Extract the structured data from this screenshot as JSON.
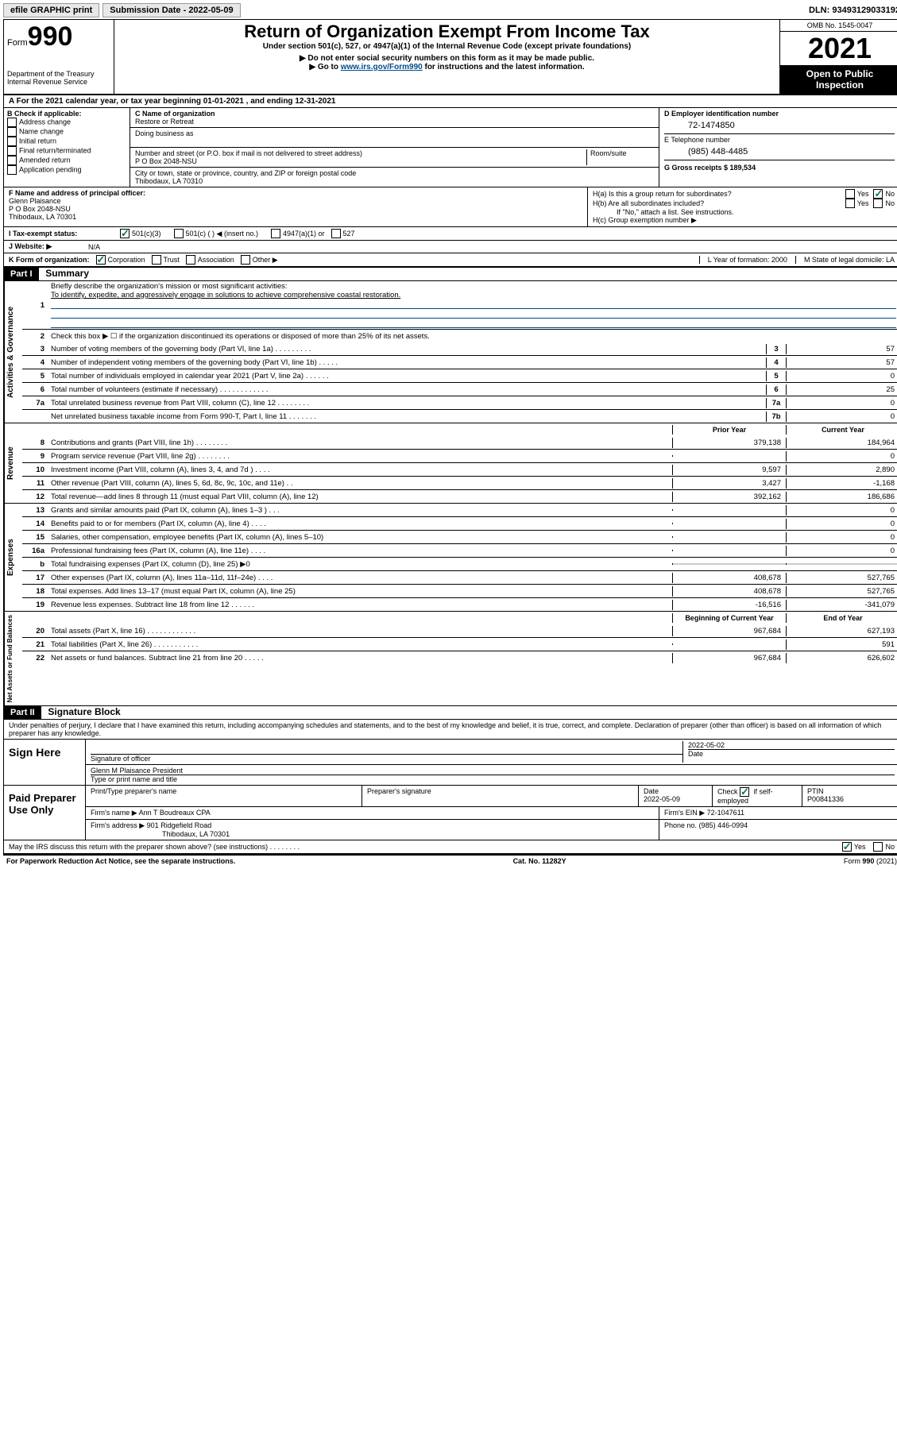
{
  "topbar": {
    "efile": "efile GRAPHIC print",
    "submission_label": "Submission Date - 2022-05-09",
    "dln_label": "DLN: 93493129033192"
  },
  "header": {
    "form_word": "Form",
    "form_num": "990",
    "dept": "Department of the Treasury",
    "irs": "Internal Revenue Service",
    "title": "Return of Organization Exempt From Income Tax",
    "sub1": "Under section 501(c), 527, or 4947(a)(1) of the Internal Revenue Code (except private foundations)",
    "sub2": "▶ Do not enter social security numbers on this form as it may be made public.",
    "sub3_pre": "▶ Go to ",
    "sub3_link": "www.irs.gov/Form990",
    "sub3_post": " for instructions and the latest information.",
    "omb": "OMB No. 1545-0047",
    "year": "2021",
    "otp": "Open to Public Inspection"
  },
  "row_a": "A For the 2021 calendar year, or tax year beginning 01-01-2021    , and ending 12-31-2021",
  "col_b": {
    "title": "B Check if applicable:",
    "items": [
      "Address change",
      "Name change",
      "Initial return",
      "Final return/terminated",
      "Amended return",
      "Application pending"
    ]
  },
  "col_c": {
    "name_lbl": "C Name of organization",
    "name": "Restore or Retreat",
    "dba_lbl": "Doing business as",
    "addr_lbl": "Number and street (or P.O. box if mail is not delivered to street address)",
    "room_lbl": "Room/suite",
    "addr": "P O Box 2048-NSU",
    "city_lbl": "City or town, state or province, country, and ZIP or foreign postal code",
    "city": "Thibodaux, LA   70310"
  },
  "col_de": {
    "d_lbl": "D Employer identification number",
    "d_val": "72-1474850",
    "e_lbl": "E Telephone number",
    "e_val": "(985) 448-4485",
    "g_lbl": "G Gross receipts $ 189,534"
  },
  "col_f": {
    "lbl": "F Name and address of principal officer:",
    "line1": "Glenn Plaisance",
    "line2": "P O Box 2048-NSU",
    "line3": "Thibodaux, LA   70301"
  },
  "col_h": {
    "ha": "H(a)  Is this a group return for subordinates?",
    "hb": "H(b)  Are all subordinates included?",
    "hb_note": "If \"No,\" attach a list. See instructions.",
    "hc": "H(c)  Group exemption number ▶",
    "yes": "Yes",
    "no": "No"
  },
  "row_i": {
    "lbl": "I    Tax-exempt status:",
    "o1": "501(c)(3)",
    "o2": "501(c) (  ) ◀ (insert no.)",
    "o3": "4947(a)(1) or",
    "o4": "527"
  },
  "row_j": {
    "lbl": "J   Website: ▶",
    "val": "N/A"
  },
  "row_k": {
    "lbl": "K Form of organization:",
    "o1": "Corporation",
    "o2": "Trust",
    "o3": "Association",
    "o4": "Other ▶",
    "l": "L Year of formation: 2000",
    "m": "M State of legal domicile: LA"
  },
  "part1": {
    "hdr": "Part I",
    "title": "Summary",
    "line1_lbl": "Briefly describe the organization's mission or most significant activities:",
    "line1_val": "To identify, expedite, and aggressively engage in solutions to achieve comprehensive coastal restoration.",
    "line2": "Check this box ▶ ☐  if the organization discontinued its operations or disposed of more than 25% of its net assets.",
    "gov": [
      {
        "n": "3",
        "t": "Number of voting members of the governing body (Part VI, line 1a)  .    .    .    .    .    .    .    .    .",
        "b": "3",
        "v": "57"
      },
      {
        "n": "4",
        "t": "Number of independent voting members of the governing body (Part VI, line 1b)  .    .    .    .    .",
        "b": "4",
        "v": "57"
      },
      {
        "n": "5",
        "t": "Total number of individuals employed in calendar year 2021 (Part V, line 2a)  .    .    .    .    .    .",
        "b": "5",
        "v": "0"
      },
      {
        "n": "6",
        "t": "Total number of volunteers (estimate if necessary)  .    .    .    .    .    .    .    .    .    .    .    .",
        "b": "6",
        "v": "25"
      },
      {
        "n": "7a",
        "t": "Total unrelated business revenue from Part VIII, column (C), line 12  .    .    .    .    .    .    .    .",
        "b": "7a",
        "v": "0"
      },
      {
        "n": "",
        "t": "Net unrelated business taxable income from Form 990-T, Part I, line 11  .    .    .    .    .    .    .",
        "b": "7b",
        "v": "0"
      }
    ],
    "col_prior": "Prior Year",
    "col_current": "Current Year",
    "rev": [
      {
        "n": "8",
        "t": "Contributions and grants (Part VIII, line 1h)  .    .    .    .    .    .    .    .",
        "p": "379,138",
        "c": "184,964"
      },
      {
        "n": "9",
        "t": "Program service revenue (Part VIII, line 2g)  .    .    .    .    .    .    .    .",
        "p": "",
        "c": "0"
      },
      {
        "n": "10",
        "t": "Investment income (Part VIII, column (A), lines 3, 4, and 7d )  .    .    .    .",
        "p": "9,597",
        "c": "2,890"
      },
      {
        "n": "11",
        "t": "Other revenue (Part VIII, column (A), lines 5, 6d, 8c, 9c, 10c, and 11e)  .    .",
        "p": "3,427",
        "c": "-1,168"
      },
      {
        "n": "12",
        "t": "Total revenue—add lines 8 through 11 (must equal Part VIII, column (A), line 12)",
        "p": "392,162",
        "c": "186,686"
      }
    ],
    "exp": [
      {
        "n": "13",
        "t": "Grants and similar amounts paid (Part IX, column (A), lines 1–3 )  .    .    .",
        "p": "",
        "c": "0"
      },
      {
        "n": "14",
        "t": "Benefits paid to or for members (Part IX, column (A), line 4)  .    .    .    .",
        "p": "",
        "c": "0"
      },
      {
        "n": "15",
        "t": "Salaries, other compensation, employee benefits (Part IX, column (A), lines 5–10)",
        "p": "",
        "c": "0"
      },
      {
        "n": "16a",
        "t": "Professional fundraising fees (Part IX, column (A), line 11e)  .    .    .    .",
        "p": "",
        "c": "0"
      },
      {
        "n": "b",
        "t": "Total fundraising expenses (Part IX, column (D), line 25) ▶0",
        "p": "shade",
        "c": "shade"
      },
      {
        "n": "17",
        "t": "Other expenses (Part IX, column (A), lines 11a–11d, 11f–24e)  .    .    .    .",
        "p": "408,678",
        "c": "527,765"
      },
      {
        "n": "18",
        "t": "Total expenses. Add lines 13–17 (must equal Part IX, column (A), line 25)",
        "p": "408,678",
        "c": "527,765"
      },
      {
        "n": "19",
        "t": "Revenue less expenses. Subtract line 18 from line 12  .    .    .    .    .    .",
        "p": "-16,516",
        "c": "-341,079"
      }
    ],
    "col_begin": "Beginning of Current Year",
    "col_end": "End of Year",
    "net": [
      {
        "n": "20",
        "t": "Total assets (Part X, line 16)  .    .    .    .    .    .    .    .    .    .    .    .",
        "p": "967,684",
        "c": "627,193"
      },
      {
        "n": "21",
        "t": "Total liabilities (Part X, line 26)  .    .    .    .    .    .    .    .    .    .    .",
        "p": "",
        "c": "591"
      },
      {
        "n": "22",
        "t": "Net assets or fund balances. Subtract line 21 from line 20  .    .    .    .    .",
        "p": "967,684",
        "c": "626,602"
      }
    ]
  },
  "side": {
    "gov": "Activities & Governance",
    "rev": "Revenue",
    "exp": "Expenses",
    "net": "Net Assets or Fund Balances"
  },
  "part2": {
    "hdr": "Part II",
    "title": "Signature Block",
    "decl": "Under penalties of perjury, I declare that I have examined this return, including accompanying schedules and statements, and to the best of my knowledge and belief, it is true, correct, and complete. Declaration of preparer (other than officer) is based on all information of which preparer has any knowledge."
  },
  "sign": {
    "lbl": "Sign Here",
    "sig_of": "Signature of officer",
    "date_lbl": "Date",
    "date": "2022-05-02",
    "name": "Glenn M Plaisance  President",
    "name_lbl": "Type or print name and title"
  },
  "prep": {
    "lbl": "Paid Preparer Use Only",
    "c1": "Print/Type preparer's name",
    "c2": "Preparer's signature",
    "c3_lbl": "Date",
    "c3": "2022-05-09",
    "c4_lbl": "Check",
    "c4_txt": "if self-employed",
    "c5_lbl": "PTIN",
    "c5": "P00841336",
    "firm_name_lbl": "Firm's name      ▶",
    "firm_name": "Ann T Boudreaux CPA",
    "firm_ein_lbl": "Firm's EIN ▶",
    "firm_ein": "72-1047611",
    "firm_addr_lbl": "Firm's address ▶",
    "firm_addr1": "901 Ridgefield Road",
    "firm_addr2": "Thibodaux, LA   70301",
    "phone_lbl": "Phone no.",
    "phone": "(985) 446-0994"
  },
  "bottom": {
    "discuss": "May the IRS discuss this return with the preparer shown above? (see instructions)  .    .    .    .    .    .    .    .",
    "yes": "Yes",
    "no": "No"
  },
  "footer": {
    "left": "For Paperwork Reduction Act Notice, see the separate instructions.",
    "mid": "Cat. No. 11282Y",
    "right": "Form 990 (2021)"
  }
}
